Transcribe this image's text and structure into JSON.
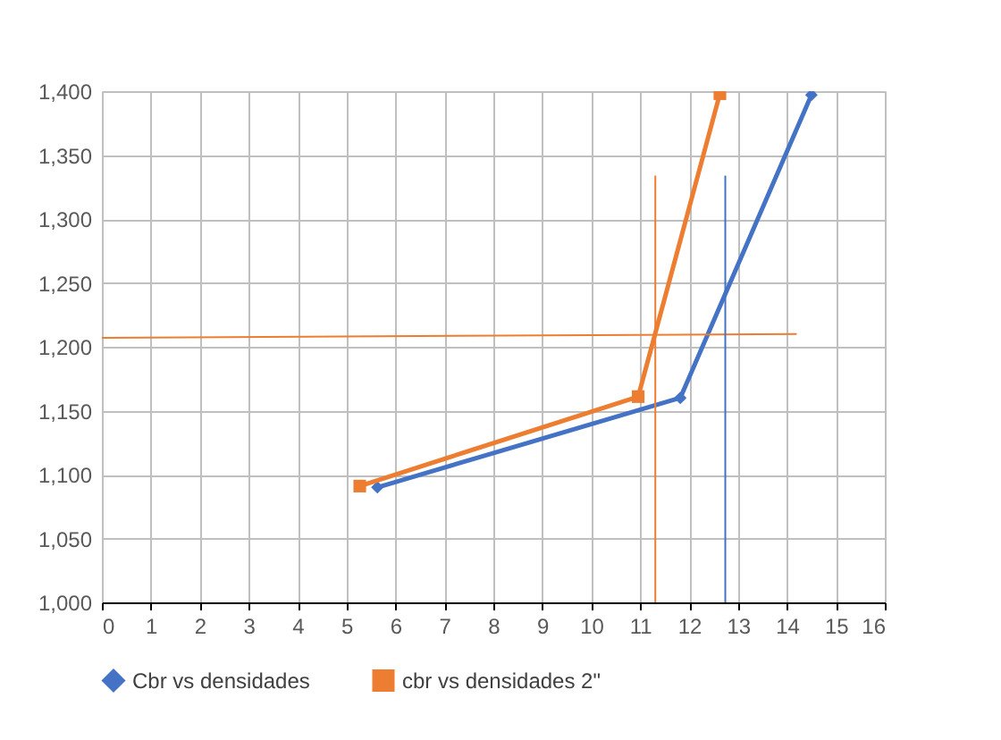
{
  "chart_data": {
    "type": "line",
    "xlim": [
      0,
      16
    ],
    "xticks": [
      0,
      1,
      2,
      3,
      4,
      5,
      6,
      7,
      8,
      9,
      10,
      11,
      12,
      13,
      14,
      15,
      16
    ],
    "ylim": [
      1000,
      1400
    ],
    "yticks": [
      {
        "value": 1000,
        "label": "1,000"
      },
      {
        "value": 1050,
        "label": "1,050"
      },
      {
        "value": 1100,
        "label": "1,100"
      },
      {
        "value": 1150,
        "label": "1,150"
      },
      {
        "value": 1200,
        "label": "1,200"
      },
      {
        "value": 1250,
        "label": "1,250"
      },
      {
        "value": 1300,
        "label": "1,300"
      },
      {
        "value": 1350,
        "label": "1,350"
      },
      {
        "value": 1400,
        "label": "1,400"
      }
    ],
    "grid": true,
    "legend": "bottom",
    "series": [
      {
        "name": "Cbr vs densidades",
        "color": "#4472c4",
        "marker": "diamond",
        "x": [
          5.63,
          11.82,
          14.5
        ],
        "values": [
          1090,
          1160,
          1397
        ]
      },
      {
        "name": "cbr vs densidades 2\"",
        "color": "#ed7d31",
        "marker": "square",
        "x": [
          5.27,
          10.96,
          12.63
        ],
        "values": [
          1091,
          1161,
          1398
        ]
      },
      {
        "color": "#ed7d31",
        "marker": "none",
        "x": [
          0,
          14.2
        ],
        "values": [
          1207,
          1210
        ]
      },
      {
        "color": "#ed7d31",
        "marker": "none",
        "x": [
          11.31,
          11.31
        ],
        "values": [
          1000,
          1334
        ]
      },
      {
        "color": "#4472c4",
        "marker": "none",
        "x": [
          12.74,
          12.74
        ],
        "values": [
          1000,
          1334
        ]
      }
    ]
  }
}
